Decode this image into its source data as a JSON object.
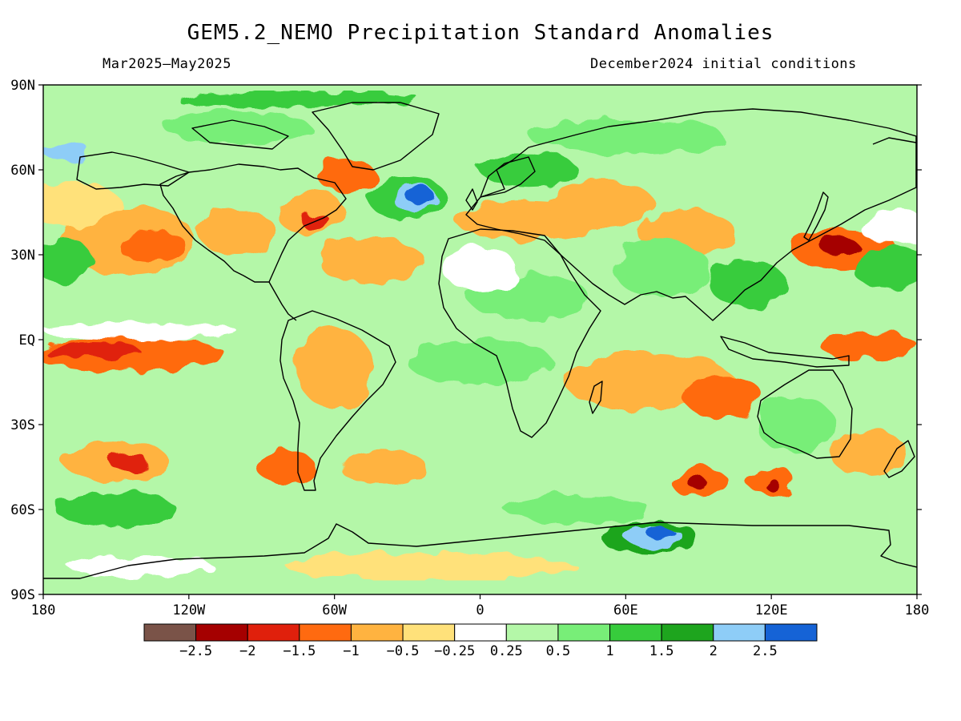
{
  "title": "GEM5.2_NEMO Precipitation Standard Anomalies",
  "period": "Mar2025–May2025",
  "init": "December2024 initial conditions",
  "lat_labels": [
    {
      "lat": 90,
      "text": "90N"
    },
    {
      "lat": 60,
      "text": "60N"
    },
    {
      "lat": 30,
      "text": "30N"
    },
    {
      "lat": 0,
      "text": "EQ"
    },
    {
      "lat": -30,
      "text": "30S"
    },
    {
      "lat": -60,
      "text": "60S"
    },
    {
      "lat": -90,
      "text": "90S"
    }
  ],
  "lon_labels": [
    {
      "lon": -180,
      "text": "180"
    },
    {
      "lon": -120,
      "text": "120W"
    },
    {
      "lon": -60,
      "text": "60W"
    },
    {
      "lon": 0,
      "text": "0"
    },
    {
      "lon": 60,
      "text": "60E"
    },
    {
      "lon": 120,
      "text": "120E"
    },
    {
      "lon": 180,
      "text": "180"
    }
  ],
  "colorbar": {
    "colors": [
      "#7a5348",
      "#a50000",
      "#e0200c",
      "#ff6a10",
      "#ffb340",
      "#ffe17a",
      "#ffffff",
      "#b4f7a8",
      "#78ee78",
      "#37cc3c",
      "#1ea51e",
      "#8ecdf7",
      "#1563d6"
    ],
    "labels": [
      "−2.5",
      "−2",
      "−1.5",
      "−1",
      "−0.5",
      "−0.25",
      "0.25",
      "0.5",
      "1",
      "1.5",
      "2",
      "2.5"
    ]
  },
  "anomaly_blobs": [
    {
      "lon": -145,
      "lat": 35,
      "rx": 28,
      "ry": 12,
      "level": 4
    },
    {
      "lon": -135,
      "lat": 33,
      "rx": 14,
      "ry": 6,
      "level": 3
    },
    {
      "lon": -170,
      "lat": 48,
      "rx": 22,
      "ry": 8,
      "level": 5
    },
    {
      "lon": -100,
      "lat": 38,
      "rx": 16,
      "ry": 8,
      "level": 4
    },
    {
      "lon": -70,
      "lat": 45,
      "rx": 14,
      "ry": 8,
      "level": 4
    },
    {
      "lon": -68,
      "lat": 42,
      "rx": 6,
      "ry": 3,
      "level": 2
    },
    {
      "lon": -55,
      "lat": 58,
      "rx": 12,
      "ry": 6,
      "level": 3
    },
    {
      "lon": -30,
      "lat": 50,
      "rx": 16,
      "ry": 8,
      "level": 9
    },
    {
      "lon": -27,
      "lat": 50,
      "rx": 9,
      "ry": 5,
      "level": 11
    },
    {
      "lon": -25,
      "lat": 51,
      "rx": 6,
      "ry": 3,
      "level": 12
    },
    {
      "lon": -45,
      "lat": 28,
      "rx": 22,
      "ry": 8,
      "level": 4
    },
    {
      "lon": 20,
      "lat": 42,
      "rx": 30,
      "ry": 7,
      "level": 4
    },
    {
      "lon": 50,
      "lat": 48,
      "rx": 22,
      "ry": 8,
      "level": 4
    },
    {
      "lon": 85,
      "lat": 38,
      "rx": 20,
      "ry": 8,
      "level": 4
    },
    {
      "lon": 150,
      "lat": 32,
      "rx": 22,
      "ry": 7,
      "level": 3
    },
    {
      "lon": 148,
      "lat": 33,
      "rx": 8,
      "ry": 3,
      "level": 1
    },
    {
      "lon": 170,
      "lat": 25,
      "rx": 16,
      "ry": 8,
      "level": 9
    },
    {
      "lon": -172,
      "lat": 28,
      "rx": 12,
      "ry": 8,
      "level": 9
    },
    {
      "lon": 110,
      "lat": 20,
      "rx": 16,
      "ry": 8,
      "level": 9
    },
    {
      "lon": 75,
      "lat": 25,
      "rx": 20,
      "ry": 10,
      "level": 8
    },
    {
      "lon": 20,
      "lat": 15,
      "rx": 25,
      "ry": 8,
      "level": 8
    },
    {
      "lon": -145,
      "lat": -5,
      "rx": 40,
      "ry": 6,
      "level": 3
    },
    {
      "lon": -160,
      "lat": -4,
      "rx": 20,
      "ry": 3,
      "level": 2
    },
    {
      "lon": 160,
      "lat": -2,
      "rx": 20,
      "ry": 5,
      "level": 3
    },
    {
      "lon": -140,
      "lat": 3,
      "rx": 40,
      "ry": 3,
      "level": 6
    },
    {
      "lon": 0,
      "lat": -8,
      "rx": 30,
      "ry": 8,
      "level": 8
    },
    {
      "lon": -60,
      "lat": -10,
      "rx": 16,
      "ry": 14,
      "level": 4
    },
    {
      "lon": 70,
      "lat": -15,
      "rx": 35,
      "ry": 10,
      "level": 4
    },
    {
      "lon": 100,
      "lat": -20,
      "rx": 16,
      "ry": 8,
      "level": 3
    },
    {
      "lon": 130,
      "lat": -30,
      "rx": 16,
      "ry": 10,
      "level": 8
    },
    {
      "lon": -150,
      "lat": -43,
      "rx": 22,
      "ry": 7,
      "level": 4
    },
    {
      "lon": -145,
      "lat": -43,
      "rx": 8,
      "ry": 3,
      "level": 2
    },
    {
      "lon": -80,
      "lat": -45,
      "rx": 12,
      "ry": 6,
      "level": 3
    },
    {
      "lon": -40,
      "lat": -45,
      "rx": 18,
      "ry": 6,
      "level": 4
    },
    {
      "lon": 90,
      "lat": -50,
      "rx": 12,
      "ry": 5,
      "level": 3
    },
    {
      "lon": 90,
      "lat": -51,
      "rx": 4,
      "ry": 2,
      "level": 1
    },
    {
      "lon": 120,
      "lat": -50,
      "rx": 10,
      "ry": 5,
      "level": 3
    },
    {
      "lon": 120,
      "lat": -51,
      "rx": 3,
      "ry": 2,
      "level": 1
    },
    {
      "lon": 160,
      "lat": -40,
      "rx": 16,
      "ry": 8,
      "level": 4
    },
    {
      "lon": 40,
      "lat": -60,
      "rx": 30,
      "ry": 5,
      "level": 8
    },
    {
      "lon": 70,
      "lat": -70,
      "rx": 20,
      "ry": 6,
      "level": 10
    },
    {
      "lon": 72,
      "lat": -70,
      "rx": 12,
      "ry": 4,
      "level": 11
    },
    {
      "lon": 74,
      "lat": -68,
      "rx": 6,
      "ry": 2,
      "level": 12
    },
    {
      "lon": -20,
      "lat": -80,
      "rx": 60,
      "ry": 5,
      "level": 5
    },
    {
      "lon": -140,
      "lat": -80,
      "rx": 30,
      "ry": 4,
      "level": 6
    },
    {
      "lon": -150,
      "lat": -60,
      "rx": 25,
      "ry": 6,
      "level": 9
    },
    {
      "lon": -100,
      "lat": 75,
      "rx": 30,
      "ry": 6,
      "level": 8
    },
    {
      "lon": 60,
      "lat": 72,
      "rx": 40,
      "ry": 6,
      "level": 8
    },
    {
      "lon": -170,
      "lat": 66,
      "rx": 10,
      "ry": 3,
      "level": 11
    },
    {
      "lon": -75,
      "lat": 85,
      "rx": 50,
      "ry": 3,
      "level": 9
    },
    {
      "lon": 20,
      "lat": 60,
      "rx": 20,
      "ry": 6,
      "level": 9
    },
    {
      "lon": 170,
      "lat": 40,
      "rx": 14,
      "ry": 6,
      "level": 6
    },
    {
      "lon": 0,
      "lat": 25,
      "rx": 15,
      "ry": 8,
      "level": 6
    }
  ]
}
